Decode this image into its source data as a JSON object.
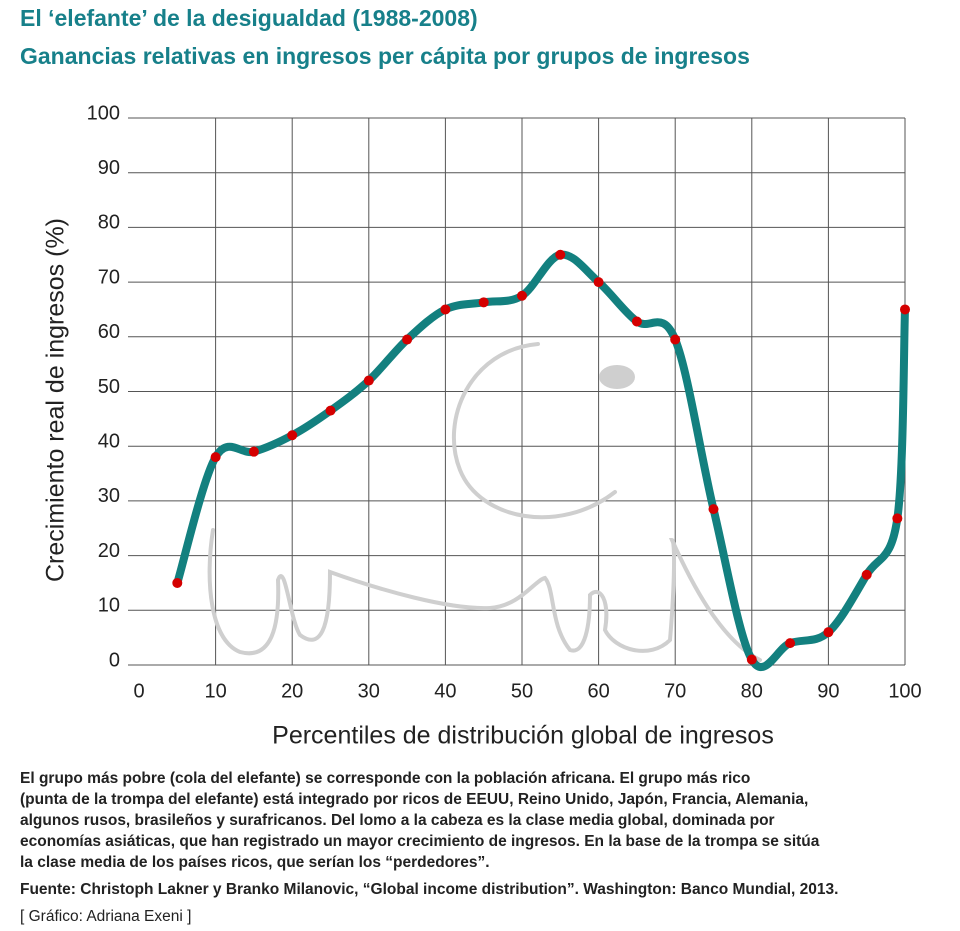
{
  "chart_data": {
    "type": "line",
    "title": "El ‘elefante’ de la desigualdad (1988-2008)",
    "subtitle": "Ganancias relativas en ingresos per cápita por grupos de ingresos",
    "x_label": "Percentiles de distribución global de ingresos",
    "y_label": "Crecimiento real de ingresos (%)",
    "x": [
      5,
      10,
      15,
      20,
      25,
      30,
      35,
      40,
      45,
      50,
      55,
      60,
      65,
      70,
      75,
      80,
      85,
      90,
      95,
      99,
      100
    ],
    "series": [
      {
        "color": "#13807f",
        "marker_color": "#d40000",
        "values": [
          15,
          38,
          39,
          42,
          46.5,
          52,
          59.5,
          65,
          66.3,
          67.5,
          75,
          70,
          62.8,
          59.5,
          28.5,
          1,
          4,
          6,
          16.5,
          26.8,
          65
        ]
      }
    ],
    "xlim": [
      0,
      100
    ],
    "ylim": [
      0,
      100
    ],
    "xticks": [
      0,
      10,
      20,
      30,
      40,
      50,
      60,
      70,
      80,
      90,
      100
    ],
    "yticks": [
      0,
      10,
      20,
      30,
      40,
      50,
      60,
      70,
      80,
      90,
      100
    ],
    "grid": true,
    "caption": [
      "El grupo más pobre (cola del elefante) se corresponde con la población africana. El grupo más rico",
      "(punta de la trompa del elefante) está integrado por ricos de EEUU, Reino Unido, Japón, Francia, Alemania,",
      "algunos rusos, brasileños y surafricanos. Del lomo a la cabeza es la clase media global, dominada por",
      "economías asiáticas, que han registrado un mayor crecimiento de ingresos. En la base de la trompa se sitúa",
      "la clase media de los países ricos, que serían los “perdedores”."
    ],
    "source": "Fuente: Christoph Lakner y Branko Milanovic, “Global income distribution”. Washington: Banco Mundial, 2013.",
    "credit": "[ Gráfico: Adriana Exeni ]"
  }
}
